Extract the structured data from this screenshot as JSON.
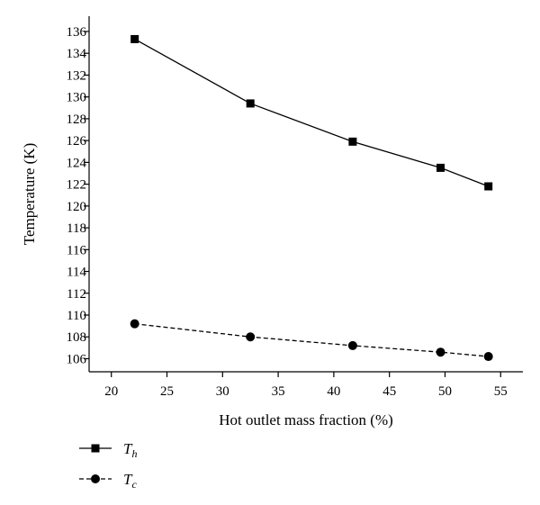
{
  "chart_data": {
    "type": "line",
    "xlabel": "Hot outlet mass fraction (%)",
    "ylabel": "Temperature (K)",
    "xlim": [
      18,
      57
    ],
    "ylim": [
      104.8,
      137.4
    ],
    "x_ticks": [
      20,
      25,
      30,
      35,
      40,
      45,
      50,
      55
    ],
    "y_ticks": [
      106,
      108,
      110,
      112,
      114,
      116,
      118,
      120,
      122,
      124,
      126,
      128,
      130,
      132,
      134,
      136
    ],
    "grid": false,
    "legend_position": "bottom-left",
    "series": [
      {
        "name": "T",
        "subscript": "h",
        "marker": "square",
        "line_style": "solid",
        "color": "#000000",
        "x": [
          22.1,
          32.5,
          41.7,
          49.6,
          53.9
        ],
        "y": [
          135.3,
          129.4,
          125.9,
          123.5,
          121.8
        ]
      },
      {
        "name": "T",
        "subscript": "c",
        "marker": "circle",
        "line_style": "dashed",
        "color": "#000000",
        "x": [
          22.1,
          32.5,
          41.7,
          49.6,
          53.9
        ],
        "y": [
          109.2,
          108.0,
          107.2,
          106.6,
          106.2
        ]
      }
    ]
  }
}
